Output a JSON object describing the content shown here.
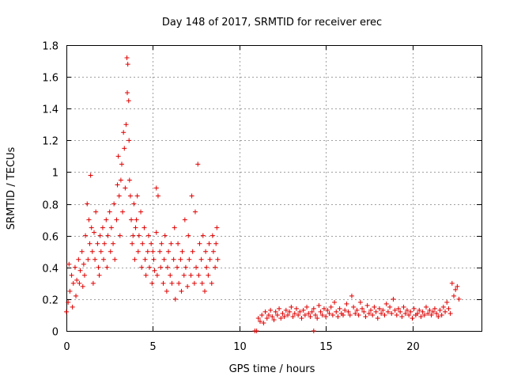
{
  "chart_data": {
    "type": "scatter",
    "title": "Day 148 of 2017, SRMTID for receiver erec",
    "xlabel": "GPS time / hours",
    "ylabel": "SRMTID / TECUs",
    "xlim": [
      0,
      24
    ],
    "ylim": [
      0,
      1.8
    ],
    "xticks": [
      0,
      5,
      10,
      15,
      20
    ],
    "yticks": [
      0,
      0.2,
      0.4,
      0.6,
      0.8,
      1,
      1.2,
      1.4,
      1.6,
      1.8
    ],
    "xtick_labels": [
      "0",
      "5",
      "10",
      "15",
      "20"
    ],
    "ytick_labels": [
      "0",
      "0.2",
      "0.4",
      "0.6",
      "0.8",
      "1",
      "1.2",
      "1.4",
      "1.6",
      "1.8"
    ],
    "grid": true,
    "marker": "+",
    "color": "#e00000",
    "series": [
      {
        "name": "SRMTID",
        "x": [
          0.0,
          0.1,
          0.15,
          0.2,
          0.3,
          0.35,
          0.4,
          0.5,
          0.55,
          0.6,
          0.7,
          0.75,
          0.8,
          0.9,
          0.95,
          1.0,
          1.05,
          1.1,
          1.2,
          1.25,
          1.3,
          1.35,
          1.4,
          1.45,
          1.5,
          1.55,
          1.6,
          1.65,
          1.7,
          1.8,
          1.85,
          1.9,
          1.95,
          2.0,
          2.1,
          2.15,
          2.2,
          2.3,
          2.35,
          2.4,
          2.5,
          2.55,
          2.6,
          2.7,
          2.75,
          2.8,
          2.9,
          2.95,
          3.0,
          3.05,
          3.1,
          3.15,
          3.2,
          3.25,
          3.3,
          3.35,
          3.4,
          3.45,
          3.5,
          3.52,
          3.55,
          3.6,
          3.62,
          3.65,
          3.7,
          3.75,
          3.8,
          3.85,
          3.9,
          3.95,
          4.0,
          4.05,
          4.1,
          4.15,
          4.2,
          4.3,
          4.35,
          4.4,
          4.5,
          4.55,
          4.6,
          4.7,
          4.75,
          4.8,
          4.9,
          4.95,
          5.0,
          5.05,
          5.1,
          5.2,
          5.25,
          5.3,
          5.4,
          5.45,
          5.5,
          5.6,
          5.65,
          5.7,
          5.8,
          5.85,
          5.9,
          6.0,
          6.05,
          6.1,
          6.2,
          6.25,
          6.3,
          6.4,
          6.45,
          6.5,
          6.6,
          6.65,
          6.7,
          6.8,
          6.85,
          6.9,
          7.0,
          7.05,
          7.1,
          7.2,
          7.25,
          7.3,
          7.4,
          7.45,
          7.5,
          7.6,
          7.65,
          7.7,
          7.8,
          7.85,
          7.9,
          8.0,
          8.05,
          8.1,
          8.2,
          8.25,
          8.3,
          8.4,
          8.45,
          8.5,
          8.6,
          8.65,
          8.7,
          8.75,
          5.2,
          11.0,
          11.1,
          11.2,
          11.3,
          11.4,
          11.5,
          11.6,
          11.7,
          11.8,
          11.9,
          12.0,
          12.1,
          12.2,
          12.3,
          12.4,
          12.5,
          12.6,
          12.7,
          12.8,
          12.9,
          13.0,
          13.1,
          13.2,
          13.3,
          13.4,
          13.5,
          13.6,
          13.7,
          13.8,
          13.9,
          14.0,
          14.1,
          14.2,
          14.3,
          14.4,
          14.5,
          14.6,
          14.7,
          14.8,
          14.9,
          15.0,
          15.1,
          15.2,
          15.3,
          15.4,
          15.5,
          15.6,
          15.7,
          15.8,
          15.9,
          16.0,
          16.1,
          16.2,
          16.3,
          16.4,
          16.5,
          16.6,
          16.7,
          16.8,
          16.9,
          17.0,
          17.1,
          17.2,
          17.3,
          17.4,
          17.5,
          17.6,
          17.7,
          17.8,
          17.9,
          18.0,
          18.1,
          18.2,
          18.3,
          18.4,
          18.5,
          18.6,
          18.7,
          18.8,
          18.9,
          19.0,
          19.1,
          19.2,
          19.3,
          19.4,
          19.5,
          19.6,
          19.7,
          19.8,
          19.9,
          20.0,
          20.1,
          20.2,
          20.3,
          20.4,
          20.5,
          20.6,
          20.7,
          20.8,
          20.9,
          21.0,
          21.1,
          21.2,
          21.3,
          21.4,
          21.5,
          21.6,
          21.7,
          21.8,
          21.9,
          22.0,
          22.1,
          22.2,
          22.3,
          22.4,
          22.5,
          22.6,
          22.7,
          10.9,
          14.3
        ],
        "y": [
          0.12,
          0.18,
          0.42,
          0.25,
          0.35,
          0.15,
          0.3,
          0.4,
          0.22,
          0.32,
          0.45,
          0.3,
          0.38,
          0.5,
          0.28,
          0.42,
          0.35,
          0.6,
          0.8,
          0.45,
          0.7,
          0.55,
          0.98,
          0.65,
          0.5,
          0.3,
          0.62,
          0.45,
          0.75,
          0.55,
          0.4,
          0.35,
          0.6,
          0.5,
          0.65,
          0.45,
          0.55,
          0.7,
          0.4,
          0.6,
          0.75,
          0.5,
          0.65,
          0.55,
          0.8,
          0.45,
          0.7,
          0.92,
          1.1,
          0.85,
          0.6,
          0.95,
          1.05,
          0.75,
          1.25,
          1.15,
          0.9,
          1.3,
          1.72,
          1.5,
          1.68,
          1.45,
          1.2,
          0.95,
          0.85,
          0.7,
          0.55,
          0.6,
          0.8,
          0.45,
          0.65,
          0.7,
          0.85,
          0.5,
          0.6,
          0.75,
          0.4,
          0.55,
          0.65,
          0.45,
          0.35,
          0.5,
          0.6,
          0.4,
          0.55,
          0.3,
          0.5,
          0.45,
          0.38,
          0.62,
          0.35,
          0.85,
          0.5,
          0.4,
          0.55,
          0.3,
          0.45,
          0.6,
          0.25,
          0.4,
          0.5,
          0.35,
          0.55,
          0.3,
          0.45,
          0.65,
          0.2,
          0.4,
          0.55,
          0.3,
          0.45,
          0.25,
          0.5,
          0.35,
          0.7,
          0.4,
          0.28,
          0.6,
          0.45,
          0.35,
          0.85,
          0.5,
          0.3,
          0.75,
          0.4,
          1.05,
          0.35,
          0.55,
          0.45,
          0.3,
          0.6,
          0.25,
          0.5,
          0.4,
          0.35,
          0.55,
          0.45,
          0.3,
          0.6,
          0.5,
          0.4,
          0.55,
          0.65,
          0.45,
          0.9,
          0.0,
          0.08,
          0.06,
          0.1,
          0.05,
          0.12,
          0.08,
          0.1,
          0.13,
          0.09,
          0.07,
          0.12,
          0.1,
          0.14,
          0.08,
          0.11,
          0.09,
          0.13,
          0.1,
          0.12,
          0.15,
          0.09,
          0.11,
          0.14,
          0.1,
          0.12,
          0.08,
          0.13,
          0.1,
          0.15,
          0.11,
          0.09,
          0.12,
          0.14,
          0.1,
          0.08,
          0.16,
          0.12,
          0.1,
          0.14,
          0.09,
          0.13,
          0.11,
          0.15,
          0.1,
          0.18,
          0.12,
          0.09,
          0.14,
          0.11,
          0.1,
          0.13,
          0.17,
          0.12,
          0.1,
          0.22,
          0.15,
          0.11,
          0.13,
          0.1,
          0.18,
          0.14,
          0.12,
          0.09,
          0.16,
          0.11,
          0.13,
          0.1,
          0.15,
          0.12,
          0.08,
          0.14,
          0.11,
          0.13,
          0.1,
          0.17,
          0.12,
          0.15,
          0.11,
          0.2,
          0.13,
          0.1,
          0.14,
          0.12,
          0.09,
          0.15,
          0.11,
          0.13,
          0.1,
          0.12,
          0.08,
          0.14,
          0.1,
          0.11,
          0.13,
          0.09,
          0.12,
          0.1,
          0.15,
          0.11,
          0.13,
          0.1,
          0.12,
          0.14,
          0.11,
          0.09,
          0.13,
          0.1,
          0.15,
          0.12,
          0.18,
          0.14,
          0.11,
          0.3,
          0.22,
          0.26,
          0.28,
          0.2,
          0.0,
          0.0
        ]
      }
    ]
  }
}
